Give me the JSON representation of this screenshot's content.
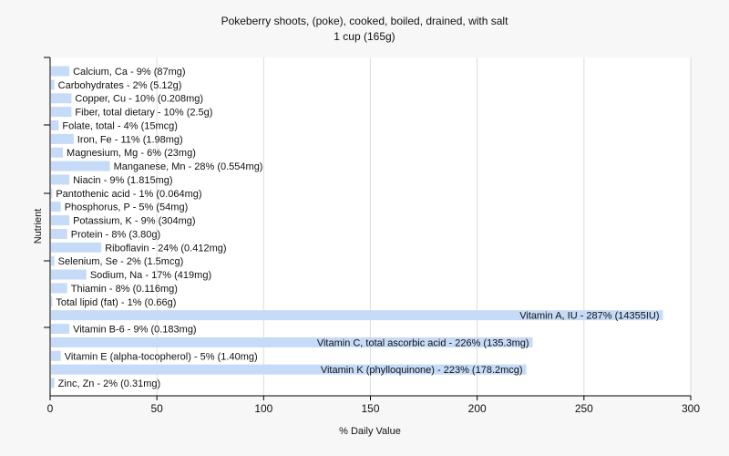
{
  "chart_data": {
    "type": "bar",
    "orientation": "horizontal",
    "title": "Pokeberry shoots, (poke), cooked, boiled, drained, with salt",
    "subtitle": "1 cup (165g)",
    "xlabel": "% Daily Value",
    "ylabel": "Nutrient",
    "xlim": [
      0,
      300
    ],
    "xticks": [
      "0",
      "50",
      "100",
      "150",
      "200",
      "250",
      "300"
    ],
    "grid": true,
    "bar_color": "#c6dbf7",
    "categories": [
      "Calcium, Ca",
      "Carbohydrates",
      "Copper, Cu",
      "Fiber, total dietary",
      "Folate, total",
      "Iron, Fe",
      "Magnesium, Mg",
      "Manganese, Mn",
      "Niacin",
      "Pantothenic acid",
      "Phosphorus, P",
      "Potassium, K",
      "Protein",
      "Riboflavin",
      "Selenium, Se",
      "Sodium, Na",
      "Thiamin",
      "Total lipid (fat)",
      "Vitamin A, IU",
      "Vitamin B-6",
      "Vitamin C, total ascorbic acid",
      "Vitamin E (alpha-tocopherol)",
      "Vitamin K (phylloquinone)",
      "Zinc, Zn"
    ],
    "values": [
      9,
      2,
      10,
      10,
      4,
      11,
      6,
      28,
      9,
      1,
      5,
      9,
      8,
      24,
      2,
      17,
      8,
      1,
      287,
      9,
      226,
      5,
      223,
      2
    ],
    "labels": [
      "Calcium, Ca - 9% (87mg)",
      "Carbohydrates - 2% (5.12g)",
      "Copper, Cu - 10% (0.208mg)",
      "Fiber, total dietary - 10% (2.5g)",
      "Folate, total - 4% (15mcg)",
      "Iron, Fe - 11% (1.98mg)",
      "Magnesium, Mg - 6% (23mg)",
      "Manganese, Mn - 28% (0.554mg)",
      "Niacin - 9% (1.815mg)",
      "Pantothenic acid - 1% (0.064mg)",
      "Phosphorus, P - 5% (54mg)",
      "Potassium, K - 9% (304mg)",
      "Protein - 8% (3.80g)",
      "Riboflavin - 24% (0.412mg)",
      "Selenium, Se - 2% (1.5mcg)",
      "Sodium, Na - 17% (419mg)",
      "Thiamin - 8% (0.116mg)",
      "Total lipid (fat) - 1% (0.66g)",
      "Vitamin A, IU - 287% (14355IU)",
      "Vitamin B-6 - 9% (0.183mg)",
      "Vitamin C, total ascorbic acid - 226% (135.3mg)",
      "Vitamin E (alpha-tocopherol) - 5% (1.40mg)",
      "Vitamin K (phylloquinone) - 223% (178.2mcg)",
      "Zinc, Zn - 2% (0.31mg)"
    ]
  }
}
